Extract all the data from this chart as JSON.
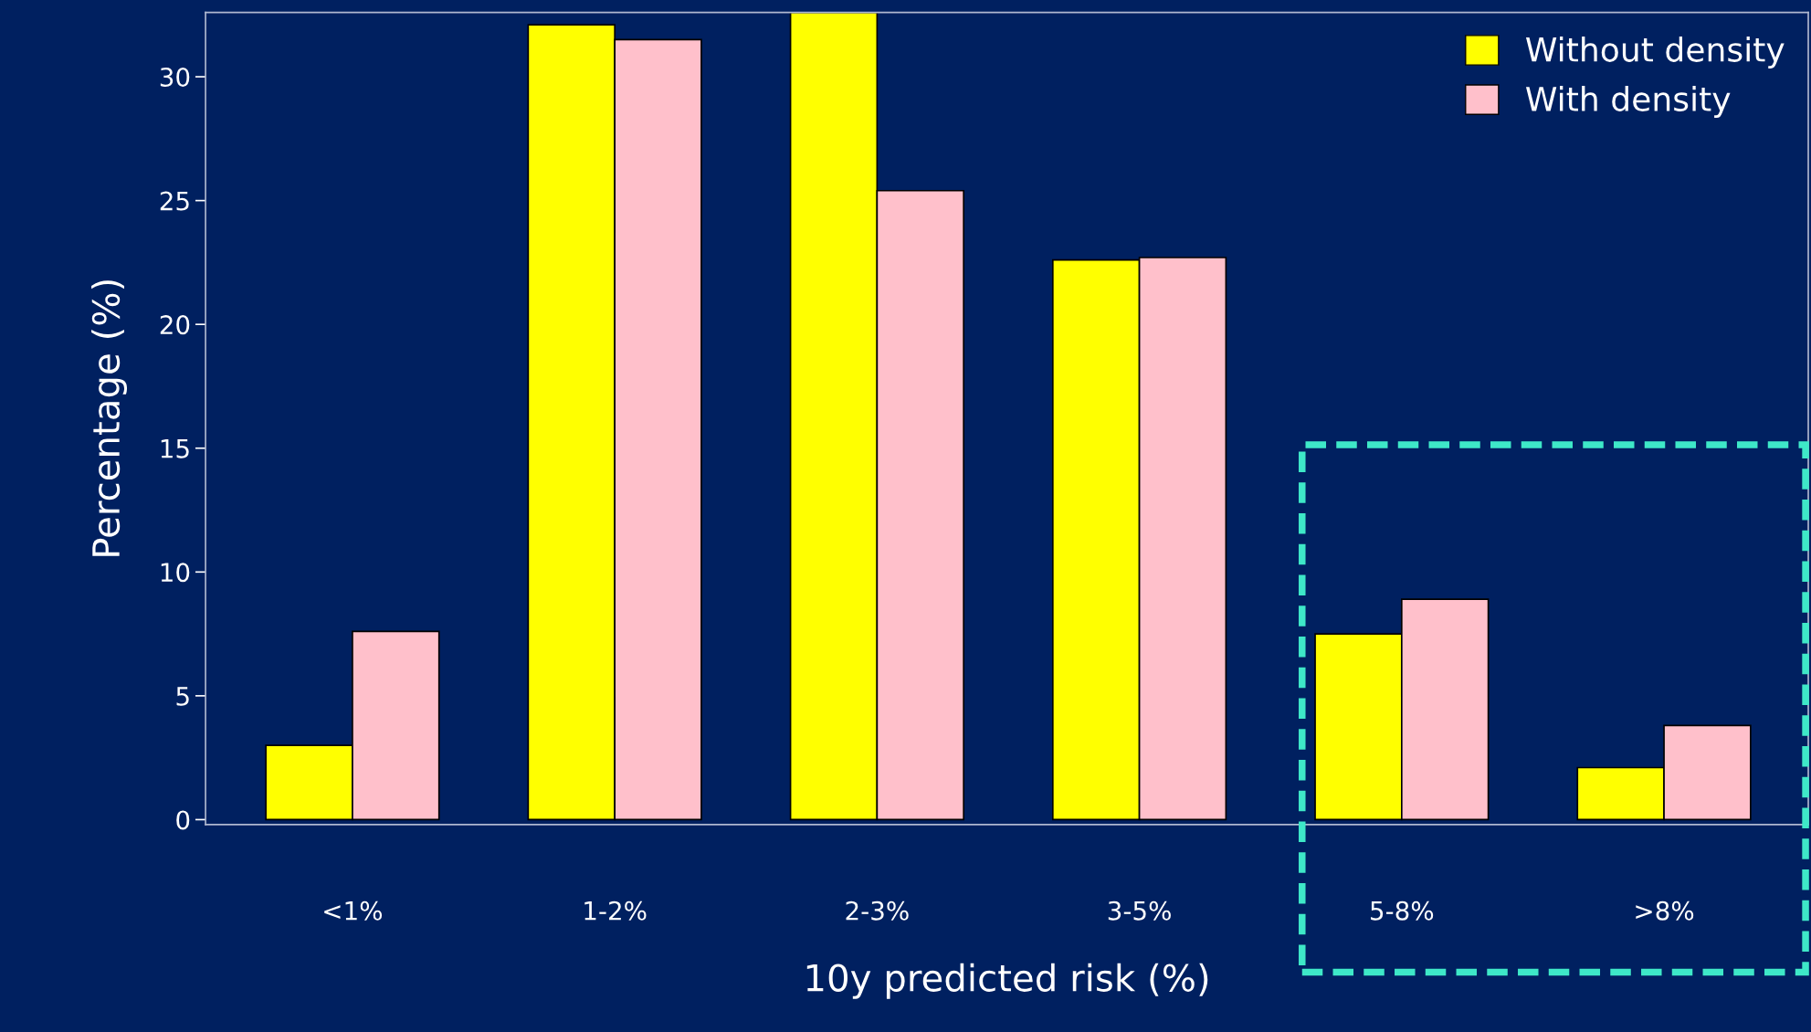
{
  "chart_data": {
    "type": "bar",
    "xlabel": "10y predicted risk (%)",
    "ylabel": "Percentage (%)",
    "categories": [
      "<1%",
      "1-2%",
      "2-3%",
      "3-5%",
      "5-8%",
      ">8%"
    ],
    "series": [
      {
        "name": "Without density",
        "color": "#ffff00",
        "values": [
          3.0,
          32.1,
          32.6,
          22.6,
          7.5,
          2.1
        ]
      },
      {
        "name": "With density",
        "color": "#ffc0cb",
        "values": [
          7.6,
          31.5,
          25.4,
          22.7,
          8.9,
          3.8
        ]
      }
    ],
    "ylim": [
      -0.2,
      32.6
    ],
    "yticks": [
      0,
      5,
      10,
      15,
      20,
      25,
      30
    ],
    "grid": false,
    "legend": "top right"
  }
}
